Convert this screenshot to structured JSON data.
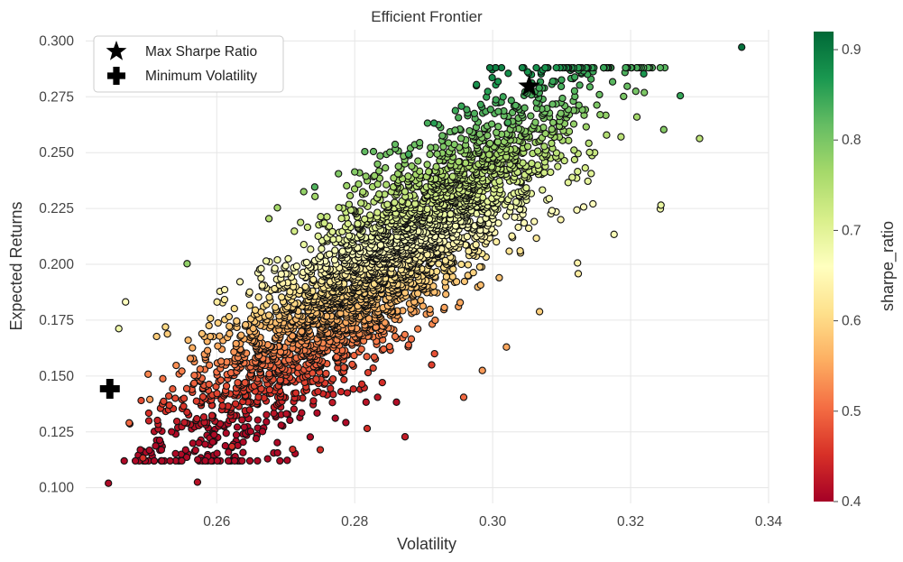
{
  "chart_data": {
    "type": "scatter",
    "title": "Efficient Frontier",
    "xlabel": "Volatility",
    "ylabel": "Expected Returns",
    "xlim": [
      0.241,
      0.34
    ],
    "ylim": [
      0.093,
      0.305
    ],
    "x_ticks": [
      "0.26",
      "0.28",
      "0.30",
      "0.32",
      "0.34"
    ],
    "x_tick_values": [
      0.26,
      0.28,
      0.3,
      0.32,
      0.34
    ],
    "y_ticks": [
      "0.100",
      "0.125",
      "0.150",
      "0.175",
      "0.200",
      "0.225",
      "0.250",
      "0.275",
      "0.300"
    ],
    "y_tick_values": [
      0.1,
      0.125,
      0.15,
      0.175,
      0.2,
      0.225,
      0.25,
      0.275,
      0.3
    ],
    "grid": true,
    "legend": {
      "placement": "top-left",
      "entries": [
        {
          "label": "Max Sharpe Ratio",
          "marker": "star",
          "color": "#000000"
        },
        {
          "label": "Minimum Volatility",
          "marker": "plus",
          "color": "#000000"
        }
      ]
    },
    "highlights": [
      {
        "name": "Max Sharpe Ratio",
        "x": 0.3053,
        "y": 0.2797,
        "marker": "star"
      },
      {
        "name": "Minimum Volatility",
        "x": 0.2445,
        "y": 0.1443,
        "marker": "plus"
      }
    ],
    "colorbar": {
      "label": "sharpe_ratio",
      "colormap": "RdYlGn",
      "range": [
        0.4,
        0.92
      ],
      "ticks": [
        "0.4",
        "0.5",
        "0.6",
        "0.7",
        "0.8",
        "0.9"
      ],
      "tick_values": [
        0.4,
        0.5,
        0.6,
        0.7,
        0.8,
        0.9
      ]
    },
    "points": [
      {
        "x": 0.2443,
        "y": 0.102,
        "s": 0.41
      },
      {
        "x": 0.2572,
        "y": 0.1025,
        "s": 0.42
      },
      {
        "x": 0.2493,
        "y": 0.1133,
        "s": 0.45
      },
      {
        "x": 0.3361,
        "y": 0.2972,
        "s": 0.91
      },
      {
        "x": 0.2557,
        "y": 0.2003,
        "s": 0.78
      },
      {
        "x": 0.2458,
        "y": 0.1712,
        "s": 0.68
      },
      {
        "x": 0.3272,
        "y": 0.2755,
        "s": 0.85
      },
      {
        "x": 0.3219,
        "y": 0.2853,
        "s": 0.87
      },
      {
        "x": 0.33,
        "y": 0.2563,
        "s": 0.74
      },
      {
        "x": 0.3022,
        "y": 0.2635,
        "s": 0.84
      },
      {
        "x": 0.2915,
        "y": 0.2632,
        "s": 0.86
      },
      {
        "x": 0.2958,
        "y": 0.1405,
        "s": 0.5
      },
      {
        "x": 0.2985,
        "y": 0.1525,
        "s": 0.54
      },
      {
        "x": 0.275,
        "y": 0.117,
        "s": 0.45
      },
      {
        "x": 0.271,
        "y": 0.1172,
        "s": 0.45
      },
      {
        "x": 0.2622,
        "y": 0.1185,
        "s": 0.45
      },
      {
        "x": 0.3248,
        "y": 0.2603,
        "s": 0.79
      },
      {
        "x": 0.3243,
        "y": 0.2248,
        "s": 0.68
      },
      {
        "x": 0.3244,
        "y": 0.2265,
        "s": 0.69
      },
      {
        "x": 0.3176,
        "y": 0.2134,
        "s": 0.67
      },
      {
        "x": 0.3123,
        "y": 0.2006,
        "s": 0.64
      },
      {
        "x": 0.3124,
        "y": 0.1958,
        "s": 0.63
      },
      {
        "x": 0.3068,
        "y": 0.1788,
        "s": 0.59
      },
      {
        "x": 0.302,
        "y": 0.163,
        "s": 0.55
      },
      {
        "x": 0.2878,
        "y": 0.2493,
        "s": 0.84
      },
      {
        "x": 0.2742,
        "y": 0.2346,
        "s": 0.83
      },
      {
        "x": 0.2873,
        "y": 0.1228,
        "s": 0.43
      },
      {
        "x": 0.2818,
        "y": 0.1265,
        "s": 0.45
      },
      {
        "x": 0.2503,
        "y": 0.1395,
        "s": 0.54
      },
      {
        "x": 0.2473,
        "y": 0.129,
        "s": 0.5
      }
    ]
  }
}
